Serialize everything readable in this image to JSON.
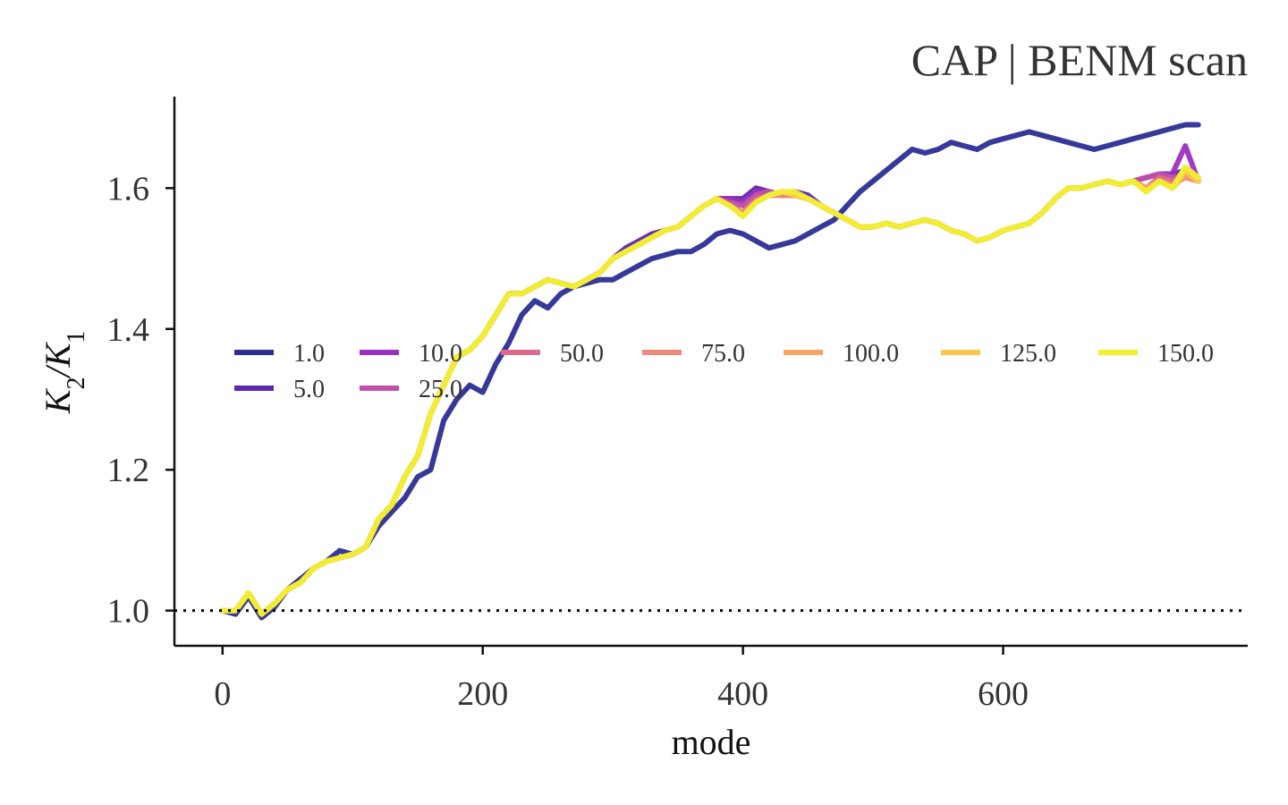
{
  "chart_data": {
    "type": "line",
    "title": "CAP | BENM scan",
    "xlabel": "mode",
    "ylabel_main": "K",
    "ylabel_sub1": "2",
    "ylabel_sep": "/K",
    "ylabel_sub2": "1",
    "xlim": [
      -37,
      788
    ],
    "ylim": [
      0.95,
      1.73
    ],
    "xticks": [
      0,
      200,
      400,
      600
    ],
    "yticks": [
      1.0,
      1.2,
      1.4,
      1.6
    ],
    "xtick_labels": [
      "0",
      "200",
      "400",
      "600"
    ],
    "ytick_labels": [
      "1.0",
      "1.2",
      "1.4",
      "1.6"
    ],
    "reference_line": {
      "y": 1.0,
      "style": "dotted",
      "color": "#000000"
    },
    "grid": false,
    "legend_placement": "center, two rows",
    "x": [
      0,
      10,
      20,
      30,
      40,
      50,
      60,
      70,
      80,
      90,
      100,
      110,
      120,
      130,
      140,
      150,
      160,
      170,
      180,
      190,
      200,
      210,
      220,
      230,
      240,
      250,
      260,
      270,
      280,
      290,
      300,
      310,
      320,
      330,
      340,
      350,
      360,
      370,
      380,
      390,
      400,
      410,
      420,
      430,
      440,
      450,
      460,
      470,
      480,
      490,
      500,
      510,
      520,
      530,
      540,
      550,
      560,
      570,
      580,
      590,
      600,
      610,
      620,
      630,
      640,
      650,
      660,
      670,
      680,
      690,
      700,
      710,
      720,
      730,
      740,
      750
    ],
    "series": [
      {
        "name": "1.0",
        "color": "#2b2e94",
        "values": [
          1.0,
          0.995,
          1.02,
          0.99,
          1.005,
          1.03,
          1.045,
          1.06,
          1.07,
          1.085,
          1.08,
          1.09,
          1.12,
          1.14,
          1.16,
          1.19,
          1.2,
          1.27,
          1.3,
          1.32,
          1.31,
          1.35,
          1.38,
          1.42,
          1.44,
          1.43,
          1.45,
          1.46,
          1.465,
          1.47,
          1.47,
          1.48,
          1.49,
          1.5,
          1.505,
          1.51,
          1.51,
          1.52,
          1.535,
          1.54,
          1.535,
          1.525,
          1.515,
          1.52,
          1.525,
          1.535,
          1.545,
          1.555,
          1.575,
          1.595,
          1.61,
          1.625,
          1.64,
          1.655,
          1.65,
          1.655,
          1.665,
          1.66,
          1.655,
          1.665,
          1.67,
          1.675,
          1.68,
          1.675,
          1.67,
          1.665,
          1.66,
          1.655,
          1.66,
          1.665,
          1.67,
          1.675,
          1.68,
          1.685,
          1.69,
          1.69
        ]
      },
      {
        "name": "5.0",
        "color": "#5c28b0",
        "values": [
          1.0,
          1.0,
          1.025,
          0.995,
          1.01,
          1.03,
          1.04,
          1.06,
          1.07,
          1.075,
          1.08,
          1.09,
          1.13,
          1.15,
          1.19,
          1.22,
          1.28,
          1.32,
          1.36,
          1.37,
          1.39,
          1.42,
          1.45,
          1.45,
          1.46,
          1.47,
          1.465,
          1.46,
          1.47,
          1.48,
          1.5,
          1.515,
          1.525,
          1.535,
          1.54,
          1.545,
          1.56,
          1.575,
          1.585,
          1.585,
          1.585,
          1.6,
          1.595,
          1.59,
          1.595,
          1.59,
          1.575,
          1.565,
          1.555,
          1.545,
          1.545,
          1.55,
          1.545,
          1.55,
          1.555,
          1.55,
          1.54,
          1.535,
          1.525,
          1.53,
          1.54,
          1.545,
          1.55,
          1.565,
          1.585,
          1.6,
          1.6,
          1.605,
          1.61,
          1.605,
          1.61,
          1.615,
          1.62,
          1.62,
          1.625,
          1.615
        ]
      },
      {
        "name": "10.0",
        "color": "#9b2ec0",
        "values": [
          1.0,
          1.0,
          1.025,
          0.995,
          1.01,
          1.03,
          1.04,
          1.06,
          1.07,
          1.075,
          1.08,
          1.09,
          1.13,
          1.15,
          1.19,
          1.22,
          1.28,
          1.32,
          1.36,
          1.37,
          1.39,
          1.42,
          1.45,
          1.45,
          1.46,
          1.47,
          1.465,
          1.46,
          1.47,
          1.48,
          1.5,
          1.51,
          1.52,
          1.53,
          1.54,
          1.545,
          1.56,
          1.575,
          1.585,
          1.585,
          1.58,
          1.595,
          1.595,
          1.59,
          1.59,
          1.585,
          1.575,
          1.565,
          1.555,
          1.545,
          1.545,
          1.55,
          1.545,
          1.55,
          1.555,
          1.55,
          1.54,
          1.535,
          1.525,
          1.53,
          1.54,
          1.545,
          1.55,
          1.565,
          1.585,
          1.6,
          1.6,
          1.605,
          1.61,
          1.605,
          1.61,
          1.615,
          1.62,
          1.62,
          1.66,
          1.61
        ]
      },
      {
        "name": "25.0",
        "color": "#c050a8",
        "values": [
          1.0,
          1.0,
          1.025,
          0.995,
          1.01,
          1.03,
          1.04,
          1.06,
          1.07,
          1.075,
          1.08,
          1.09,
          1.13,
          1.15,
          1.19,
          1.22,
          1.28,
          1.32,
          1.36,
          1.37,
          1.39,
          1.42,
          1.45,
          1.45,
          1.46,
          1.47,
          1.465,
          1.46,
          1.47,
          1.48,
          1.5,
          1.51,
          1.52,
          1.53,
          1.54,
          1.545,
          1.56,
          1.575,
          1.585,
          1.58,
          1.575,
          1.59,
          1.595,
          1.59,
          1.59,
          1.585,
          1.575,
          1.565,
          1.555,
          1.545,
          1.545,
          1.55,
          1.545,
          1.55,
          1.555,
          1.55,
          1.54,
          1.535,
          1.525,
          1.53,
          1.54,
          1.545,
          1.55,
          1.565,
          1.585,
          1.6,
          1.6,
          1.605,
          1.61,
          1.605,
          1.61,
          1.615,
          1.62,
          1.615,
          1.62,
          1.61
        ]
      },
      {
        "name": "50.0",
        "color": "#dc6a88",
        "values": [
          1.0,
          1.0,
          1.025,
          0.995,
          1.01,
          1.03,
          1.04,
          1.06,
          1.07,
          1.075,
          1.08,
          1.09,
          1.13,
          1.15,
          1.19,
          1.22,
          1.28,
          1.32,
          1.36,
          1.37,
          1.39,
          1.42,
          1.45,
          1.45,
          1.46,
          1.47,
          1.465,
          1.46,
          1.47,
          1.48,
          1.5,
          1.51,
          1.52,
          1.53,
          1.54,
          1.545,
          1.56,
          1.575,
          1.585,
          1.575,
          1.565,
          1.585,
          1.59,
          1.59,
          1.59,
          1.585,
          1.575,
          1.565,
          1.555,
          1.545,
          1.545,
          1.55,
          1.545,
          1.55,
          1.555,
          1.55,
          1.54,
          1.535,
          1.525,
          1.53,
          1.54,
          1.545,
          1.55,
          1.565,
          1.585,
          1.6,
          1.6,
          1.605,
          1.61,
          1.605,
          1.61,
          1.6,
          1.615,
          1.61,
          1.62,
          1.61
        ]
      },
      {
        "name": "75.0",
        "color": "#ee8a78",
        "values": [
          1.0,
          1.0,
          1.025,
          0.995,
          1.01,
          1.03,
          1.04,
          1.06,
          1.07,
          1.075,
          1.08,
          1.09,
          1.13,
          1.15,
          1.19,
          1.22,
          1.28,
          1.32,
          1.36,
          1.37,
          1.39,
          1.42,
          1.45,
          1.45,
          1.46,
          1.47,
          1.465,
          1.46,
          1.47,
          1.48,
          1.5,
          1.51,
          1.52,
          1.53,
          1.54,
          1.545,
          1.56,
          1.575,
          1.585,
          1.575,
          1.565,
          1.58,
          1.59,
          1.59,
          1.59,
          1.585,
          1.575,
          1.565,
          1.555,
          1.545,
          1.545,
          1.55,
          1.545,
          1.55,
          1.555,
          1.55,
          1.54,
          1.535,
          1.525,
          1.53,
          1.54,
          1.545,
          1.55,
          1.565,
          1.585,
          1.6,
          1.6,
          1.605,
          1.61,
          1.605,
          1.61,
          1.6,
          1.61,
          1.605,
          1.615,
          1.61
        ]
      },
      {
        "name": "100.0",
        "color": "#f8a462",
        "values": [
          1.0,
          1.0,
          1.025,
          0.995,
          1.01,
          1.03,
          1.04,
          1.06,
          1.07,
          1.075,
          1.08,
          1.09,
          1.13,
          1.15,
          1.19,
          1.22,
          1.28,
          1.32,
          1.36,
          1.37,
          1.39,
          1.42,
          1.45,
          1.45,
          1.46,
          1.47,
          1.465,
          1.46,
          1.47,
          1.48,
          1.5,
          1.51,
          1.52,
          1.53,
          1.54,
          1.545,
          1.56,
          1.575,
          1.585,
          1.575,
          1.56,
          1.58,
          1.59,
          1.595,
          1.59,
          1.585,
          1.575,
          1.565,
          1.555,
          1.545,
          1.545,
          1.55,
          1.545,
          1.55,
          1.555,
          1.55,
          1.54,
          1.535,
          1.525,
          1.53,
          1.54,
          1.545,
          1.55,
          1.565,
          1.585,
          1.6,
          1.6,
          1.605,
          1.61,
          1.605,
          1.61,
          1.6,
          1.61,
          1.6,
          1.62,
          1.61
        ]
      },
      {
        "name": "125.0",
        "color": "#fcc84c",
        "values": [
          1.0,
          1.0,
          1.025,
          0.995,
          1.01,
          1.03,
          1.04,
          1.06,
          1.07,
          1.075,
          1.08,
          1.09,
          1.13,
          1.15,
          1.19,
          1.22,
          1.28,
          1.32,
          1.36,
          1.37,
          1.39,
          1.42,
          1.45,
          1.45,
          1.46,
          1.47,
          1.465,
          1.46,
          1.47,
          1.48,
          1.5,
          1.51,
          1.52,
          1.53,
          1.54,
          1.545,
          1.56,
          1.575,
          1.585,
          1.575,
          1.56,
          1.58,
          1.59,
          1.595,
          1.59,
          1.585,
          1.575,
          1.565,
          1.555,
          1.545,
          1.545,
          1.55,
          1.545,
          1.55,
          1.555,
          1.55,
          1.54,
          1.535,
          1.525,
          1.53,
          1.54,
          1.545,
          1.55,
          1.565,
          1.585,
          1.6,
          1.6,
          1.605,
          1.61,
          1.605,
          1.61,
          1.595,
          1.61,
          1.6,
          1.625,
          1.61
        ]
      },
      {
        "name": "150.0",
        "color": "#f0f030",
        "values": [
          1.0,
          1.0,
          1.025,
          0.995,
          1.01,
          1.03,
          1.04,
          1.06,
          1.07,
          1.075,
          1.08,
          1.09,
          1.13,
          1.15,
          1.19,
          1.22,
          1.28,
          1.32,
          1.36,
          1.37,
          1.39,
          1.42,
          1.45,
          1.45,
          1.46,
          1.47,
          1.465,
          1.46,
          1.47,
          1.48,
          1.5,
          1.51,
          1.52,
          1.53,
          1.54,
          1.545,
          1.56,
          1.575,
          1.585,
          1.575,
          1.56,
          1.58,
          1.59,
          1.595,
          1.595,
          1.585,
          1.575,
          1.565,
          1.555,
          1.545,
          1.545,
          1.55,
          1.545,
          1.55,
          1.555,
          1.55,
          1.54,
          1.535,
          1.525,
          1.53,
          1.54,
          1.545,
          1.55,
          1.565,
          1.585,
          1.6,
          1.6,
          1.605,
          1.61,
          1.605,
          1.61,
          1.595,
          1.61,
          1.6,
          1.63,
          1.615
        ]
      }
    ]
  }
}
